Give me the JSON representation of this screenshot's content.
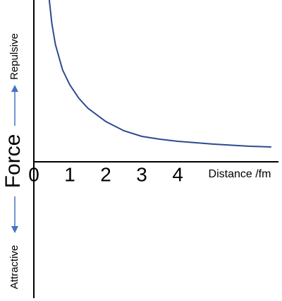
{
  "chart_data": {
    "type": "line",
    "y_label": "Force",
    "annotations": [
      "Repulsive",
      "Attractive"
    ],
    "x_label": "Distance /fm",
    "x": [
      0.43,
      0.5,
      0.6,
      0.8,
      1,
      1.25,
      1.5,
      2,
      2.5,
      3,
      3.5,
      4,
      5,
      6,
      6.6
    ],
    "values": [
      229,
      196,
      166,
      130,
      109,
      90,
      76,
      57,
      44,
      36,
      32,
      29,
      25,
      22,
      21
    ],
    "color": "#2e4a8e",
    "xlim": [
      0,
      6.8
    ],
    "xticks": [
      0,
      1,
      2,
      3,
      4
    ],
    "ylim": [
      -193,
      229
    ],
    "arrow_color": "#4472c4"
  }
}
